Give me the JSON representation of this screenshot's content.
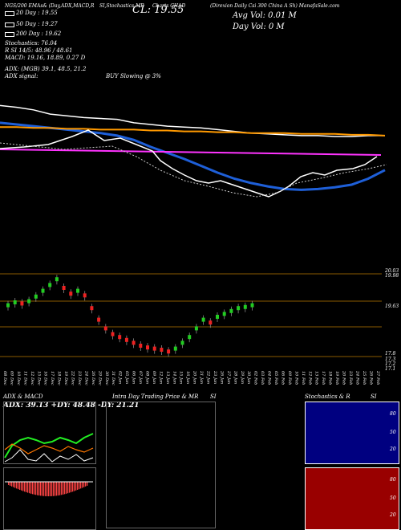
{
  "header": {
    "top_left": "NGS/200  EMAs& (Day,ADX,MACD,R",
    "top_mid": "SI,Stochastics,MR",
    "price_label": "CL: 19.55",
    "top_mid2": "Charts CHAD",
    "top_right": "(Direxion Daily Csi 300 China A Sh) ManafaSale.com",
    "avg_vol": "Avg Vol: 0.01 M",
    "day_vol": "Day Vol: 0  M"
  },
  "stats": {
    "ema20": "20  Day : 19.55",
    "ema50": "50  Day : 19.27",
    "ema200": "200  Day : 19.62",
    "stoch": "Stochastics: 76.04",
    "rsi": "R          SI 14/5: 48.96  / 48.61",
    "macd": "MACD: 19.16,  18.89, 0.27  D",
    "adx": "ADX:                              (MGB) 39.1,  48.5,  21.2",
    "adx_signal": "ADX  signal:",
    "buy_signal": "BUY Slowing @ 3%"
  },
  "candle_axis": {
    "upper": "20.03",
    "upper2": "19.98",
    "mid": "19.63",
    "low1": "17.8",
    "low2": "17.3",
    "low3": "17.2",
    "low4": "17.1"
  },
  "date_labels": [
    "08 Dec",
    "09 Dec",
    "10 Dec",
    "11 Dec",
    "12 Dec",
    "15 Dec",
    "16 Dec",
    "17 Dec",
    "18 Dec",
    "19 Dec",
    "22 Dec",
    "23 Dec",
    "24 Dec",
    "26 Dec",
    "29 Dec",
    "30 Dec",
    "31 Dec",
    "02 Jan",
    "05 Jan",
    "06 Jan",
    "07 Jan",
    "08 Jan",
    "09 Jan",
    "12 Jan",
    "13 Jan",
    "14 Jan",
    "15 Jan",
    "16 Jan",
    "20 Jan",
    "21 Jan",
    "22 Jan",
    "23 Jan",
    "26 Jan",
    "27 Jan",
    "28 Jan",
    "29 Jan",
    "30 Jan",
    "02 Feb",
    "03 Feb",
    "04 Feb",
    "05 Feb",
    "06 Feb",
    "09 Feb",
    "10 Feb",
    "11 Feb",
    "12 Feb",
    "13 Feb",
    "17 Feb",
    "18 Feb",
    "19 Feb",
    "20 Feb",
    "23 Feb",
    "24 Feb",
    "25 Feb",
    "26 Feb",
    "27 Feb"
  ],
  "panels": {
    "adx_title": "ADX  & MACD",
    "adx_values": "ADX: 39.13 +DY: 48.48  -DY: 21.21",
    "intra_title": "Intra  Day Trading Price  & MR",
    "intra_si": "SI",
    "stoch_title": "Stochastics & R",
    "stoch_si": "SI",
    "stoch_levels": [
      "80",
      "50",
      "20"
    ],
    "rsi_levels": [
      "80",
      "50",
      "20"
    ]
  },
  "colors": {
    "ema20": "#ffffff",
    "ema50": "#1e5fd8",
    "ema200": "#ff9900",
    "magenta": "#ff33ff",
    "bull": "#22cc22",
    "bear": "#ee2222",
    "adx_white": "#ffffff",
    "plus_di": "#22ee22",
    "minus_di": "#ff7700",
    "stoch_bg": "#000080",
    "rsi_bg": "#990000"
  },
  "chart_data": [
    {
      "type": "line",
      "series": [
        {
          "values": [
            19.9,
            19.88,
            19.85,
            19.8,
            19.78,
            19.76,
            19.75,
            19.74,
            19.7,
            19.68,
            19.66,
            19.65,
            19.64,
            19.62,
            19.6,
            19.58,
            19.57,
            19.56,
            19.55,
            19.55,
            19.54,
            19.54,
            19.55,
            19.55
          ]
        },
        {
          "values": [
            19.7,
            19.68,
            19.66,
            19.64,
            19.62,
            19.6,
            19.58,
            19.55,
            19.5,
            19.42,
            19.35,
            19.28,
            19.2,
            19.12,
            19.05,
            19.0,
            18.96,
            18.93,
            18.92,
            18.93,
            18.95,
            18.98,
            19.05,
            19.15
          ]
        },
        {
          "values": [
            19.65,
            19.65,
            19.64,
            19.64,
            19.63,
            19.63,
            19.62,
            19.62,
            19.62,
            19.61,
            19.61,
            19.6,
            19.6,
            19.59,
            19.59,
            19.58,
            19.58,
            19.58,
            19.57,
            19.57,
            19.57,
            19.56,
            19.56,
            19.55
          ]
        }
      ]
    },
    {
      "type": "bar",
      "name": "candles",
      "values": [
        17.55,
        17.6,
        17.58,
        17.62,
        17.7,
        17.8,
        17.9,
        18.0,
        17.85,
        17.75,
        17.8,
        17.72,
        17.5,
        17.3,
        17.15,
        17.05,
        17.0,
        16.95,
        16.9,
        16.85,
        16.82,
        16.8,
        16.78,
        16.75,
        16.8,
        16.9,
        17.0,
        17.15,
        17.3,
        17.25,
        17.35,
        17.4,
        17.45,
        17.5,
        17.52,
        17.55
      ]
    }
  ]
}
